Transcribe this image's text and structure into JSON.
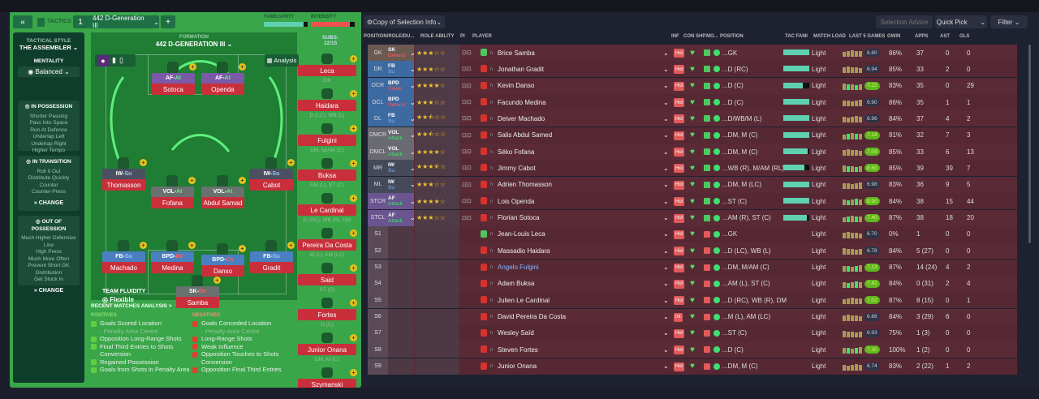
{
  "header": {
    "back": "«",
    "tactics_label": "TACTICS",
    "slot": "1",
    "tactic_name": "442 D-Generation III",
    "add": "+",
    "familiarity_label": "FAMILIARITY",
    "intensity_label": "INTENSITY",
    "familiarity": 0.9,
    "intensity": 0.88
  },
  "sidebar": {
    "style_label": "TACTICAL STYLE",
    "style": "THE ASSEMBLER",
    "mentality_label": "MENTALITY",
    "mentality": "Balanced",
    "sections": [
      {
        "title": "IN POSSESSION",
        "items": [
          "Shorter Passing",
          "Pass Into Space",
          "Run At Defence",
          "Underlap Left",
          "Underlap Right",
          "Higher Tempo"
        ],
        "change": "CHANGE"
      },
      {
        "title": "IN TRANSITION",
        "items": [
          "Roll It Out",
          "Distribute Quickly",
          "Counter",
          "Counter-Press"
        ],
        "change": "CHANGE"
      },
      {
        "title": "OUT OF POSSESSION",
        "items": [
          "Much Higher Defensive",
          "Line",
          "High Press",
          "Much More Often",
          "Prevent Short GK",
          "Distribution",
          "Get Stuck In"
        ],
        "change": "CHANGE"
      }
    ]
  },
  "pitch": {
    "formation_label": "FORMATION",
    "formation": "442 D-GENERATION III",
    "analysis": "Analysis",
    "subs_label": "SUBS:",
    "subs_count": "12/15",
    "fluidity_label": "TEAM FLUIDITY",
    "fluidity": "Flexible",
    "players": [
      {
        "role": "AF",
        "duty": "At",
        "name": "Sotoca"
      },
      {
        "role": "AF",
        "duty": "At",
        "name": "Openda"
      },
      {
        "role": "IW",
        "duty": "Su",
        "name": "Thomasson"
      },
      {
        "role": "VOL",
        "duty": "At",
        "name": "Fofana"
      },
      {
        "role": "VOL",
        "duty": "At",
        "name": "Abdul Samad"
      },
      {
        "role": "IW",
        "duty": "Su",
        "name": "Cabot"
      },
      {
        "role": "FB",
        "duty": "Su",
        "name": "Machado"
      },
      {
        "role": "BPD",
        "duty": "De",
        "name": "Medina"
      },
      {
        "role": "BPD",
        "duty": "Co",
        "name": "Danso"
      },
      {
        "role": "FB",
        "duty": "Su",
        "name": "Gradit"
      },
      {
        "role": "SK",
        "duty": "De",
        "name": "Samba"
      }
    ],
    "subs": [
      {
        "name": "Leca",
        "pos": "GK"
      },
      {
        "name": "Haidara",
        "pos": "D (LC), WB (L)"
      },
      {
        "name": "Fulgini",
        "pos": "DM, M/AM (C)"
      },
      {
        "name": "Buksa",
        "pos": "AM (L), ST (C)"
      },
      {
        "name": "Le Cardinal",
        "pos": "D (RC), WB (R), DM"
      },
      {
        "name": "Pereira Da Costa",
        "pos": "M (L), AM (LC)"
      },
      {
        "name": "Said",
        "pos": "ST (C)"
      },
      {
        "name": "Fortes",
        "pos": "D (C)"
      },
      {
        "name": "Junior Onana",
        "pos": "DM, M (C)"
      },
      {
        "name": "Szymanski",
        "pos": ""
      }
    ]
  },
  "analysis": {
    "title": "RECENT MATCHES ANALYSIS >",
    "pos_label": "POSITIVES",
    "neg_label": "NEGATIVES",
    "positives": [
      "Goals Scored Location",
      "- Penalty Area Centre",
      "Opposition Long-Range Shots",
      "Final Third Entries to Shots",
      "Conversion",
      "Regained Possession",
      "Goals from Shots in Penalty Area"
    ],
    "negatives": [
      "Goals Conceded Location",
      "- Penalty Area Centre",
      "Long-Range Shots",
      "Weak Influence",
      "Opposition Touches to Shots",
      "Conversion",
      "Opposition Final Third Entries"
    ]
  },
  "toolbar": {
    "copy": "Copy of Selection Info",
    "advice": "Selection Advice",
    "quick_pick": "Quick Pick",
    "filter": "Filter"
  },
  "columns": [
    "POSITION/ROLE/DU...",
    "ROLE ABILITY",
    "PI",
    "PLAYER",
    "INF",
    "CON",
    "SHP",
    "MO...",
    "POSITION",
    "TAC FAMI",
    "MATCH LOAD",
    "LAST 5 GAMES",
    "GWIN",
    "APPS",
    "AST",
    "GLS"
  ],
  "rows": [
    {
      "slot": "GK",
      "role": "SK",
      "duty": "Defend",
      "stars": 3,
      "name": "Brice Samba",
      "inf": "Hol",
      "pos": "...GK",
      "fam": 1,
      "load": "Light",
      "rating": "6.80",
      "gwin": "86%",
      "apps": "37",
      "ast": "0",
      "gls": "0",
      "grp": "gk"
    },
    {
      "slot": "DR",
      "role": "FB",
      "duty": "Su",
      "stars": 3,
      "name": "Jonathan Gradit",
      "inf": "Hol",
      "pos": "...D (RC)",
      "fam": 1,
      "load": "Light",
      "rating": "6.94",
      "gwin": "85%",
      "apps": "33",
      "ast": "2",
      "gls": "0",
      "grp": "d"
    },
    {
      "slot": "DCR",
      "role": "BPD",
      "duty": "Cover",
      "stars": 4,
      "name": "Kevin Danso",
      "inf": "Hol",
      "pos": "...D (C)",
      "fam": 0.75,
      "load": "Light",
      "rating": "7.22",
      "gwin": "83%",
      "apps": "35",
      "ast": "0",
      "gls": "29",
      "grp": "d"
    },
    {
      "slot": "DCL",
      "role": "BPD",
      "duty": "Defend",
      "stars": 3,
      "name": "Facundo Medina",
      "inf": "Hol",
      "pos": "...D (C)",
      "fam": 1,
      "load": "Light",
      "rating": "6.90",
      "gwin": "86%",
      "apps": "35",
      "ast": "1",
      "gls": "1",
      "grp": "d"
    },
    {
      "slot": "DL",
      "role": "FB",
      "duty": "Su",
      "stars": 2.5,
      "name": "Deiver Machado",
      "inf": "Hol",
      "pos": "...D/WB/M (L)",
      "fam": 1,
      "load": "Light",
      "rating": "6.96",
      "gwin": "84%",
      "apps": "37",
      "ast": "4",
      "gls": "2",
      "grp": "d"
    },
    {
      "slot": "DMCR",
      "role": "VOL",
      "duty": "Attack",
      "stars": 2.5,
      "name": "Salis Abdul Samed",
      "inf": "Hol",
      "pos": "...DM, M (C)",
      "fam": 1,
      "load": "Light",
      "rating": "7.14",
      "gwin": "81%",
      "apps": "32",
      "ast": "7",
      "gls": "3",
      "grp": "dm"
    },
    {
      "slot": "DMCL",
      "role": "VOL",
      "duty": "Attack",
      "stars": 4,
      "name": "Séko Fofana",
      "inf": "Hol",
      "pos": "...DM, M (C)",
      "fam": 0.95,
      "load": "Light",
      "rating": "7.04",
      "gwin": "85%",
      "apps": "33",
      "ast": "6",
      "gls": "13",
      "grp": "dm"
    },
    {
      "slot": "MR",
      "role": "IW",
      "duty": "Su",
      "stars": 3.5,
      "name": "Jimmy Cabot",
      "inf": "Hol",
      "pos": "...WB (R), M/AM (RL)",
      "fam": 0.8,
      "load": "Light",
      "rating": "8.60",
      "gwin": "85%",
      "apps": "39",
      "ast": "39",
      "gls": "7",
      "grp": "m"
    },
    {
      "slot": "ML",
      "role": "IW",
      "duty": "Su",
      "stars": 3,
      "name": "Adrien Thomasson",
      "inf": "Hol",
      "pos": "...DM, M (LC)",
      "fam": 1,
      "load": "Light",
      "rating": "6.98",
      "gwin": "83%",
      "apps": "36",
      "ast": "9",
      "gls": "5",
      "grp": "m"
    },
    {
      "slot": "STCR",
      "role": "AF",
      "duty": "Attack",
      "stars": 4,
      "name": "Lois Openda",
      "inf": "Hol",
      "pos": "...ST (C)",
      "fam": 1,
      "load": "Light",
      "rating": "8.90",
      "gwin": "84%",
      "apps": "38",
      "ast": "15",
      "gls": "44",
      "grp": "st"
    },
    {
      "slot": "STCL",
      "role": "AF",
      "duty": "Attack",
      "stars": 3,
      "name": "Florian Sotoca",
      "inf": "Hol",
      "pos": "...AM (R), ST (C)",
      "fam": 0.9,
      "load": "Light",
      "rating": "7.40",
      "gwin": "87%",
      "apps": "38",
      "ast": "18",
      "gls": "20",
      "grp": "st"
    },
    {
      "slot": "S1",
      "name": "Jean-Louis Leca",
      "inf": "Hol",
      "pos": "...GK",
      "load": "Light",
      "rating": "6.70",
      "gwin": "0%",
      "apps": "1",
      "ast": "0",
      "gls": "0",
      "grp": "s"
    },
    {
      "slot": "S2",
      "name": "Massadio Haidara",
      "inf": "Hol",
      "pos": "...D (LC), WB (L)",
      "load": "Light",
      "rating": "6.78",
      "gwin": "84%",
      "apps": "5 (27)",
      "ast": "0",
      "gls": "0",
      "grp": "s"
    },
    {
      "slot": "S3",
      "name": "Angelo Fulgini",
      "inf": "Hol",
      "pos": "...DM, M/AM (C)",
      "load": "Light",
      "rating": "7.13",
      "gwin": "87%",
      "apps": "14 (24)",
      "ast": "4",
      "gls": "2",
      "grp": "s",
      "link": true
    },
    {
      "slot": "S4",
      "name": "Adam Buksa",
      "inf": "Hol",
      "pos": "...AM (L), ST (C)",
      "load": "Light",
      "rating": "7.42",
      "gwin": "84%",
      "apps": "0 (31)",
      "ast": "2",
      "gls": "4",
      "grp": "s"
    },
    {
      "slot": "S5",
      "name": "Julien Le Cardinal",
      "inf": "Hol",
      "pos": "...D (RC), WB (R), DM",
      "load": "Light",
      "rating": "7.02",
      "gwin": "87%",
      "apps": "8 (15)",
      "ast": "0",
      "gls": "1",
      "grp": "s"
    },
    {
      "slot": "S6",
      "name": "David Pereira Da Costa",
      "inf": "Int",
      "pos": "...M (L), AM (LC)",
      "load": "Light",
      "rating": "6.86",
      "gwin": "84%",
      "apps": "3 (29)",
      "ast": "6",
      "gls": "0",
      "grp": "s"
    },
    {
      "slot": "S7",
      "name": "Wesley Saïd",
      "inf": "Hol",
      "pos": "...ST (C)",
      "load": "Light",
      "rating": "6.93",
      "gwin": "75%",
      "apps": "1 (3)",
      "ast": "0",
      "gls": "0",
      "grp": "s"
    },
    {
      "slot": "S8",
      "name": "Steven Fortes",
      "inf": "Hol",
      "pos": "...D (C)",
      "load": "Light",
      "rating": "7.30",
      "gwin": "100%",
      "apps": "1 (2)",
      "ast": "0",
      "gls": "0",
      "grp": "s"
    },
    {
      "slot": "S9",
      "name": "Junior Onana",
      "inf": "Hol",
      "pos": "...DM, M (C)",
      "load": "Light",
      "rating": "6.74",
      "gwin": "83%",
      "apps": "2 (22)",
      "ast": "1",
      "gls": "2",
      "grp": "s"
    }
  ],
  "colors": {
    "row": "#5a2b37",
    "row_alt": "#552833",
    "pitch": "#1f7d34",
    "panel": "#3aa64a",
    "gold": "#f2c12e",
    "green_badge": "#5fb81e"
  }
}
